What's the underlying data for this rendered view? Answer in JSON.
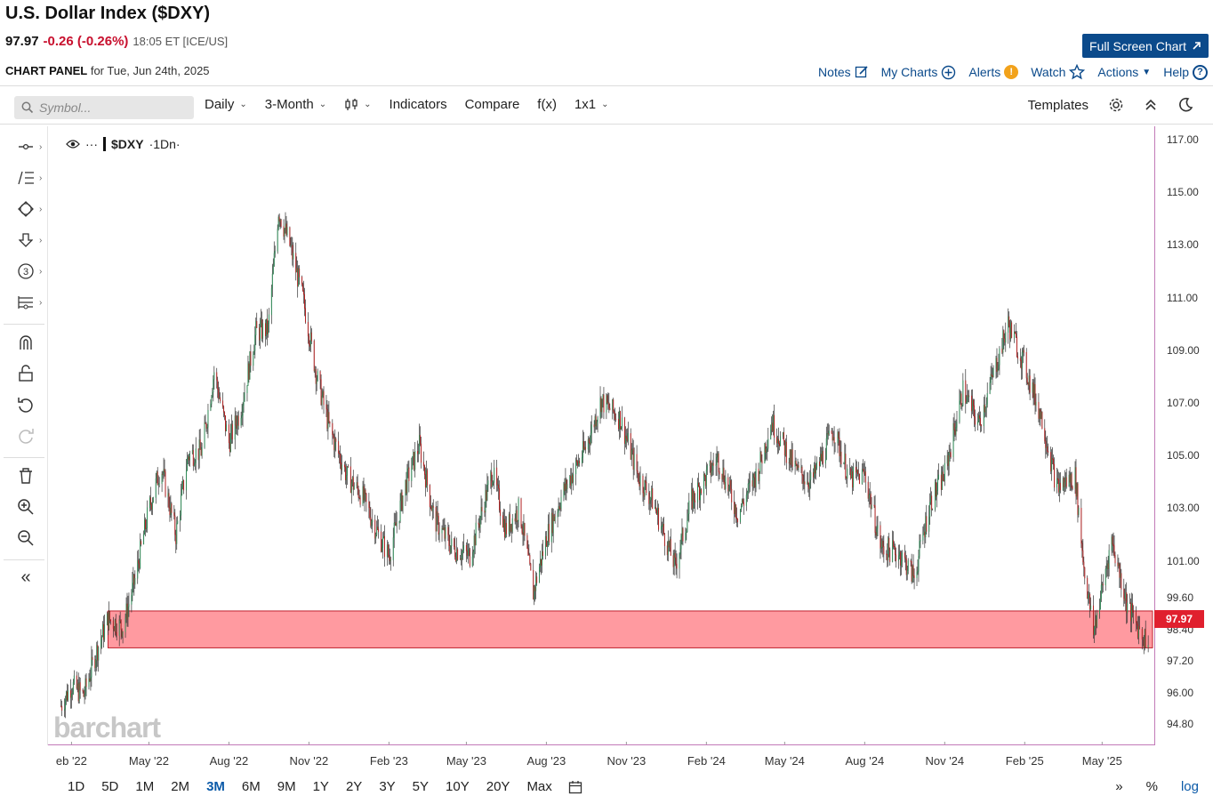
{
  "header": {
    "title": "U.S. Dollar Index ($DXY)",
    "last": "97.97",
    "change": "-0.26 (-0.26%)",
    "meta": "18:05 ET [ICE/US]",
    "panel_label": "CHART PANEL",
    "panel_date": "for Tue, Jun 24th, 2025",
    "fullscreen_label": "Full Screen Chart"
  },
  "topnav": {
    "notes": "Notes",
    "my_charts": "My Charts",
    "alerts": "Alerts",
    "alerts_badge": "!",
    "watch": "Watch",
    "actions": "Actions",
    "help": "Help",
    "help_glyph": "?"
  },
  "toolbar": {
    "symbol_placeholder": "Symbol...",
    "interval": "Daily",
    "period": "3-Month",
    "chart_type_glyph": "⫾",
    "indicators": "Indicators",
    "compare": "Compare",
    "fx": "f(x)",
    "layout": "1x1",
    "templates": "Templates"
  },
  "legend": {
    "symbol": "$DXY",
    "interval": "·1Dn·",
    "dots": "···"
  },
  "chart_data": {
    "type": "candlestick",
    "symbol": "$DXY",
    "ylim": [
      94.0,
      117.5
    ],
    "y_ticks": [
      "117.00",
      "115.00",
      "113.00",
      "111.00",
      "109.00",
      "107.00",
      "105.00",
      "103.00",
      "101.00",
      "99.60",
      "98.40",
      "97.20",
      "96.00",
      "94.80"
    ],
    "x_ticks": [
      "eb '22",
      "May '22",
      "Aug '22",
      "Nov '22",
      "Feb '23",
      "May '23",
      "Aug '23",
      "Nov '23",
      "Feb '24",
      "May '24",
      "Aug '24",
      "Nov '24",
      "Feb '25",
      "May '25"
    ],
    "last_price": "97.97",
    "support_zone": {
      "low": 97.7,
      "high": 99.1,
      "color": "#ff9aa0"
    },
    "series_color_up": "#2e8b57",
    "series_color_down": "#b22222",
    "close_path": [
      [
        "2022-01-20",
        95.5
      ],
      [
        "2022-02-01",
        96.3
      ],
      [
        "2022-02-15",
        95.9
      ],
      [
        "2022-03-01",
        97.5
      ],
      [
        "2022-03-15",
        98.8
      ],
      [
        "2022-04-01",
        98.5
      ],
      [
        "2022-04-15",
        100.3
      ],
      [
        "2022-05-01",
        103.0
      ],
      [
        "2022-05-15",
        104.6
      ],
      [
        "2022-06-01",
        102.0
      ],
      [
        "2022-06-15",
        105.0
      ],
      [
        "2022-07-01",
        105.2
      ],
      [
        "2022-07-15",
        108.2
      ],
      [
        "2022-08-01",
        105.5
      ],
      [
        "2022-08-15",
        106.8
      ],
      [
        "2022-09-01",
        109.7
      ],
      [
        "2022-09-15",
        109.8
      ],
      [
        "2022-09-27",
        114.3
      ],
      [
        "2022-10-10",
        113.0
      ],
      [
        "2022-10-25",
        111.0
      ],
      [
        "2022-11-10",
        108.0
      ],
      [
        "2022-11-25",
        106.0
      ],
      [
        "2022-12-15",
        104.2
      ],
      [
        "2023-01-01",
        103.5
      ],
      [
        "2023-01-20",
        102.0
      ],
      [
        "2023-02-01",
        101.2
      ],
      [
        "2023-02-20",
        103.9
      ],
      [
        "2023-03-08",
        105.4
      ],
      [
        "2023-03-25",
        102.6
      ],
      [
        "2023-04-15",
        101.5
      ],
      [
        "2023-05-05",
        101.2
      ],
      [
        "2023-05-31",
        104.4
      ],
      [
        "2023-06-15",
        102.2
      ],
      [
        "2023-07-01",
        103.0
      ],
      [
        "2023-07-17",
        99.8
      ],
      [
        "2023-08-01",
        101.9
      ],
      [
        "2023-08-20",
        103.6
      ],
      [
        "2023-09-15",
        105.3
      ],
      [
        "2023-10-03",
        107.1
      ],
      [
        "2023-10-25",
        106.4
      ],
      [
        "2023-11-15",
        104.2
      ],
      [
        "2023-12-01",
        103.3
      ],
      [
        "2023-12-27",
        100.8
      ],
      [
        "2024-01-15",
        103.3
      ],
      [
        "2024-02-14",
        104.9
      ],
      [
        "2024-03-08",
        102.8
      ],
      [
        "2024-04-01",
        104.5
      ],
      [
        "2024-04-16",
        106.3
      ],
      [
        "2024-05-15",
        104.4
      ],
      [
        "2024-06-01",
        104.0
      ],
      [
        "2024-06-26",
        106.0
      ],
      [
        "2024-07-15",
        104.1
      ],
      [
        "2024-08-01",
        104.3
      ],
      [
        "2024-08-20",
        101.5
      ],
      [
        "2024-09-10",
        101.3
      ],
      [
        "2024-09-27",
        100.4
      ],
      [
        "2024-10-15",
        103.2
      ],
      [
        "2024-11-01",
        104.3
      ],
      [
        "2024-11-22",
        107.5
      ],
      [
        "2024-12-10",
        106.2
      ],
      [
        "2025-01-13",
        110.0
      ],
      [
        "2025-01-31",
        108.5
      ],
      [
        "2025-02-20",
        106.5
      ],
      [
        "2025-03-10",
        103.8
      ],
      [
        "2025-03-31",
        104.2
      ],
      [
        "2025-04-10",
        100.8
      ],
      [
        "2025-04-21",
        98.3
      ],
      [
        "2025-05-12",
        101.8
      ],
      [
        "2025-05-30",
        99.3
      ],
      [
        "2025-06-16",
        98.2
      ],
      [
        "2025-06-24",
        97.97
      ]
    ]
  },
  "range_buttons": [
    "1D",
    "5D",
    "1M",
    "2M",
    "3M",
    "6M",
    "9M",
    "1Y",
    "2Y",
    "3Y",
    "5Y",
    "10Y",
    "20Y",
    "Max"
  ],
  "range_active": "3M",
  "bottom_right": {
    "pct": "%",
    "log": "log"
  },
  "watermark": "barchart"
}
